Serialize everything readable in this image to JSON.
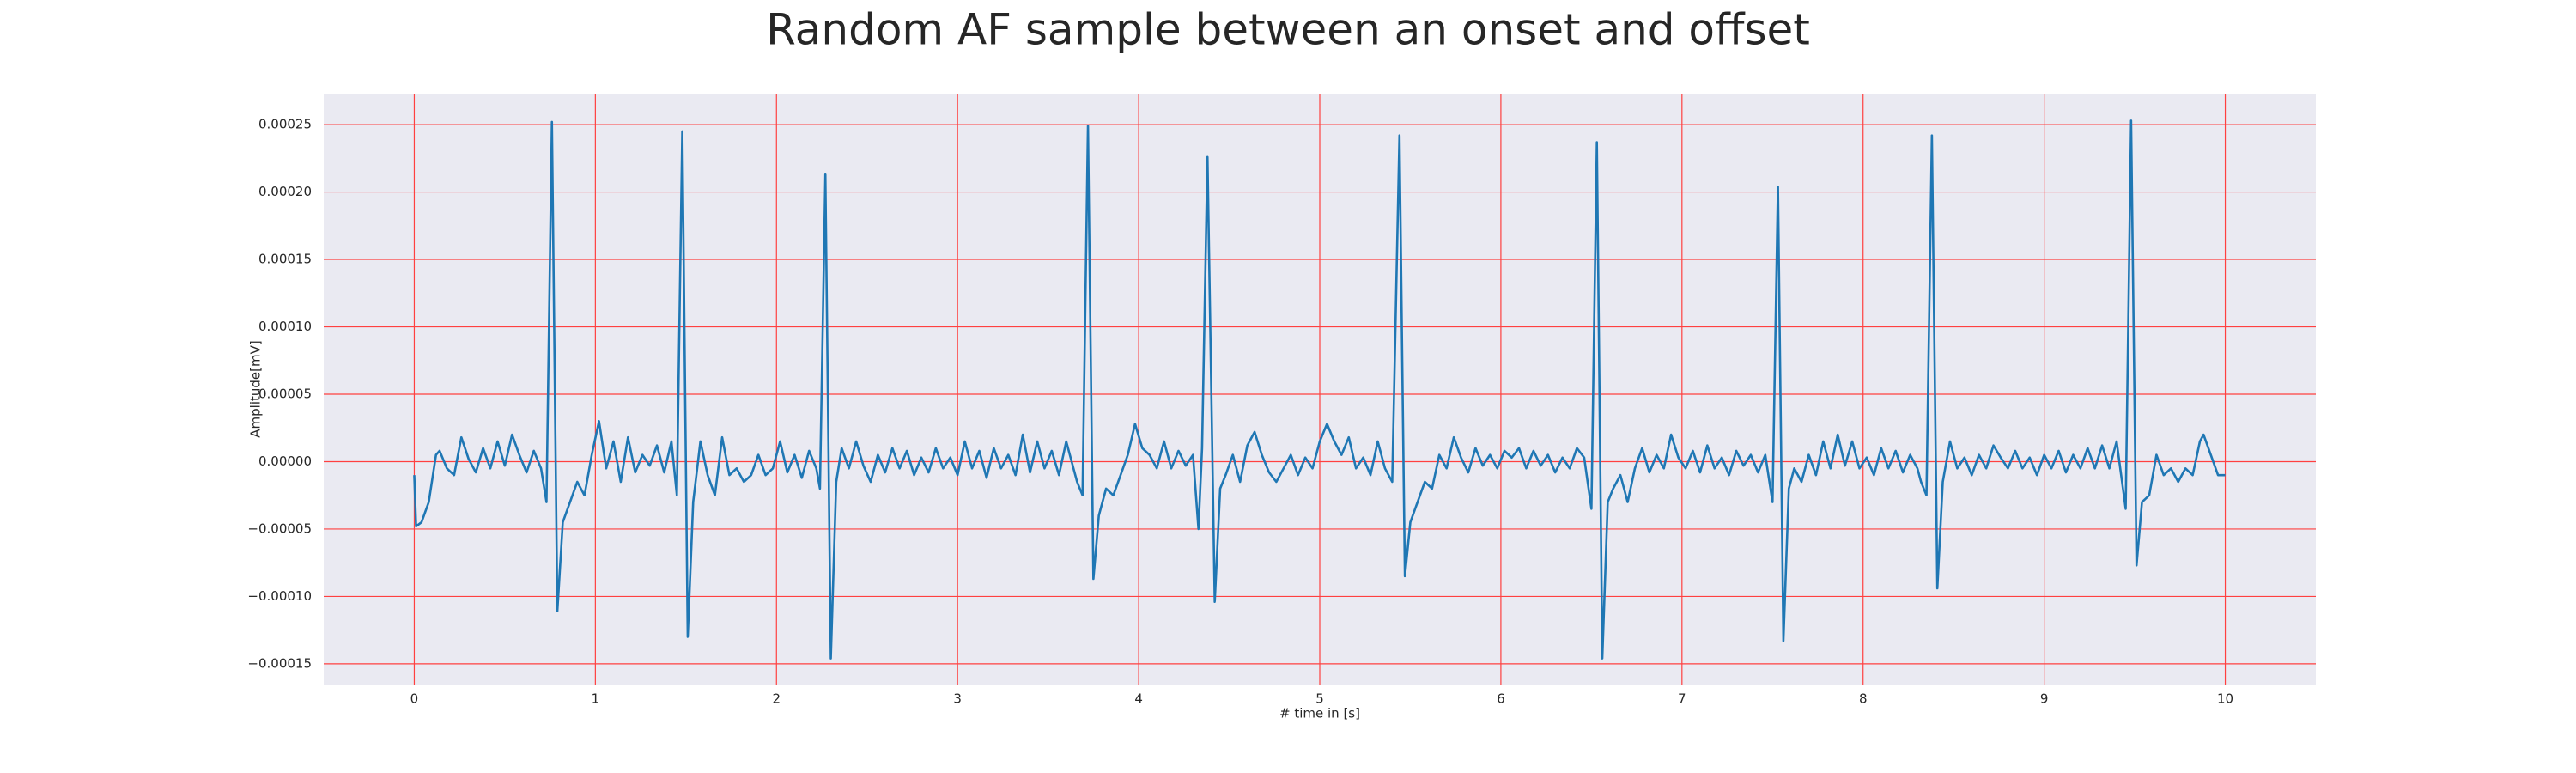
{
  "chart_data": {
    "type": "line",
    "title": "Random AF sample between an onset and offset",
    "xlabel": "# time in [s]",
    "ylabel": "Amplitude[mV]",
    "color": "#1f77b4",
    "grid": true,
    "grid_color": "#ff4040",
    "background": "#eaeaf2",
    "xlim": [
      -0.5,
      10.5
    ],
    "ylim": [
      -0.000166,
      0.000273
    ],
    "xticks": [
      0,
      1,
      2,
      3,
      4,
      5,
      6,
      7,
      8,
      9,
      10
    ],
    "yticks": [
      {
        "value": -0.00015,
        "label": "−0.00015"
      },
      {
        "value": -0.0001,
        "label": "−0.00010"
      },
      {
        "value": -5e-05,
        "label": "−0.00005"
      },
      {
        "value": 0,
        "label": "0.00000"
      },
      {
        "value": 5e-05,
        "label": "0.00005"
      },
      {
        "value": 0.0001,
        "label": "0.00010"
      },
      {
        "value": 0.00015,
        "label": "0.00015"
      },
      {
        "value": 0.0002,
        "label": "0.00020"
      },
      {
        "value": 0.00025,
        "label": "0.00025"
      }
    ],
    "x": [
      0.0,
      0.01,
      0.04,
      0.08,
      0.12,
      0.14,
      0.18,
      0.22,
      0.26,
      0.3,
      0.34,
      0.38,
      0.42,
      0.46,
      0.5,
      0.54,
      0.58,
      0.62,
      0.66,
      0.7,
      0.73,
      0.76,
      0.79,
      0.82,
      0.86,
      0.9,
      0.94,
      0.98,
      1.02,
      1.06,
      1.1,
      1.14,
      1.18,
      1.22,
      1.26,
      1.3,
      1.34,
      1.38,
      1.42,
      1.45,
      1.48,
      1.51,
      1.54,
      1.58,
      1.62,
      1.66,
      1.7,
      1.74,
      1.78,
      1.82,
      1.86,
      1.9,
      1.94,
      1.98,
      2.02,
      2.06,
      2.1,
      2.14,
      2.18,
      2.22,
      2.24,
      2.27,
      2.3,
      2.33,
      2.36,
      2.4,
      2.44,
      2.48,
      2.52,
      2.56,
      2.6,
      2.64,
      2.68,
      2.72,
      2.76,
      2.8,
      2.84,
      2.88,
      2.92,
      2.96,
      3.0,
      3.04,
      3.08,
      3.12,
      3.16,
      3.2,
      3.24,
      3.28,
      3.32,
      3.36,
      3.4,
      3.44,
      3.48,
      3.52,
      3.56,
      3.6,
      3.64,
      3.66,
      3.69,
      3.72,
      3.75,
      3.78,
      3.82,
      3.86,
      3.9,
      3.94,
      3.98,
      4.02,
      4.06,
      4.1,
      4.14,
      4.18,
      4.22,
      4.26,
      4.3,
      4.33,
      4.35,
      4.38,
      4.42,
      4.45,
      4.48,
      4.52,
      4.56,
      4.6,
      4.64,
      4.68,
      4.72,
      4.76,
      4.8,
      4.84,
      4.88,
      4.92,
      4.96,
      5.0,
      5.04,
      5.08,
      5.12,
      5.16,
      5.2,
      5.24,
      5.28,
      5.32,
      5.36,
      5.4,
      5.44,
      5.47,
      5.5,
      5.54,
      5.58,
      5.62,
      5.66,
      5.7,
      5.74,
      5.78,
      5.82,
      5.86,
      5.9,
      5.94,
      5.98,
      6.02,
      6.06,
      6.1,
      6.14,
      6.18,
      6.22,
      6.26,
      6.3,
      6.34,
      6.38,
      6.42,
      6.46,
      6.5,
      6.53,
      6.56,
      6.59,
      6.62,
      6.66,
      6.7,
      6.74,
      6.78,
      6.82,
      6.86,
      6.9,
      6.94,
      6.98,
      7.02,
      7.06,
      7.1,
      7.14,
      7.18,
      7.22,
      7.26,
      7.3,
      7.34,
      7.38,
      7.42,
      7.46,
      7.5,
      7.53,
      7.56,
      7.59,
      7.62,
      7.66,
      7.7,
      7.74,
      7.78,
      7.82,
      7.86,
      7.9,
      7.94,
      7.98,
      8.02,
      8.06,
      8.1,
      8.14,
      8.18,
      8.22,
      8.26,
      8.3,
      8.32,
      8.35,
      8.38,
      8.41,
      8.44,
      8.48,
      8.52,
      8.56,
      8.6,
      8.64,
      8.68,
      8.72,
      8.76,
      8.8,
      8.84,
      8.88,
      8.92,
      8.96,
      9.0,
      9.04,
      9.08,
      9.12,
      9.16,
      9.2,
      9.24,
      9.28,
      9.32,
      9.36,
      9.4,
      9.43,
      9.45,
      9.48,
      9.51,
      9.54,
      9.58,
      9.62,
      9.66,
      9.7,
      9.74,
      9.78,
      9.82,
      9.86,
      9.88,
      9.92,
      9.96,
      10.0
    ],
    "values": [
      -1e-05,
      -4.8e-05,
      -4.5e-05,
      -3e-05,
      5e-06,
      8e-06,
      -5e-06,
      -1e-05,
      1.8e-05,
      2e-06,
      -8e-06,
      1e-05,
      -5e-06,
      1.5e-05,
      -3e-06,
      2e-05,
      5e-06,
      -8e-06,
      8e-06,
      -5e-06,
      -3e-05,
      0.000252,
      -0.000111,
      -4.5e-05,
      -3e-05,
      -1.5e-05,
      -2.5e-05,
      5e-06,
      3e-05,
      -5e-06,
      1.5e-05,
      -1.5e-05,
      1.8e-05,
      -8e-06,
      5e-06,
      -3e-06,
      1.2e-05,
      -8e-06,
      1.5e-05,
      -2.5e-05,
      0.000245,
      -0.00013,
      -3e-05,
      1.5e-05,
      -1e-05,
      -2.5e-05,
      1.8e-05,
      -1e-05,
      -5e-06,
      -1.5e-05,
      -1e-05,
      5e-06,
      -1e-05,
      -5e-06,
      1.5e-05,
      -8e-06,
      5e-06,
      -1.2e-05,
      8e-06,
      -5e-06,
      -2e-05,
      0.000213,
      -0.000146,
      -1.5e-05,
      1e-05,
      -5e-06,
      1.5e-05,
      -3e-06,
      -1.5e-05,
      5e-06,
      -8e-06,
      1e-05,
      -5e-06,
      8e-06,
      -1e-05,
      3e-06,
      -8e-06,
      1e-05,
      -5e-06,
      3e-06,
      -1e-05,
      1.5e-05,
      -5e-06,
      8e-06,
      -1.2e-05,
      1e-05,
      -5e-06,
      5e-06,
      -1e-05,
      2e-05,
      -8e-06,
      1.5e-05,
      -5e-06,
      8e-06,
      -1e-05,
      1.5e-05,
      -5e-06,
      -1.5e-05,
      -2.5e-05,
      0.000249,
      -8.7e-05,
      -4e-05,
      -2e-05,
      -2.5e-05,
      -1e-05,
      5e-06,
      2.8e-05,
      1e-05,
      5e-06,
      -5e-06,
      1.5e-05,
      -5e-06,
      8e-06,
      -3e-06,
      5e-06,
      -5e-05,
      1e-05,
      0.000226,
      -0.000104,
      -2e-05,
      -1e-05,
      5e-06,
      -1.5e-05,
      1.2e-05,
      2.2e-05,
      5e-06,
      -8e-06,
      -1.5e-05,
      -5e-06,
      5e-06,
      -1e-05,
      3e-06,
      -5e-06,
      1.5e-05,
      2.8e-05,
      1.5e-05,
      5e-06,
      1.8e-05,
      -5e-06,
      3e-06,
      -1e-05,
      1.5e-05,
      -5e-06,
      -1.5e-05,
      0.000242,
      -8.5e-05,
      -4.5e-05,
      -3e-05,
      -1.5e-05,
      -2e-05,
      5e-06,
      -5e-06,
      1.8e-05,
      3e-06,
      -8e-06,
      1e-05,
      -3e-06,
      5e-06,
      -5e-06,
      8e-06,
      3e-06,
      1e-05,
      -5e-06,
      8e-06,
      -3e-06,
      5e-06,
      -8e-06,
      3e-06,
      -5e-06,
      1e-05,
      3e-06,
      -3.5e-05,
      0.000237,
      -0.000146,
      -3e-05,
      -2e-05,
      -1e-05,
      -3e-05,
      -5e-06,
      1e-05,
      -8e-06,
      5e-06,
      -5e-06,
      2e-05,
      3e-06,
      -5e-06,
      8e-06,
      -8e-06,
      1.2e-05,
      -5e-06,
      3e-06,
      -1e-05,
      8e-06,
      -3e-06,
      5e-06,
      -8e-06,
      5e-06,
      -3e-05,
      0.000204,
      -0.000133,
      -2e-05,
      -5e-06,
      -1.5e-05,
      5e-06,
      -1e-05,
      1.5e-05,
      -5e-06,
      2e-05,
      -3e-06,
      1.5e-05,
      -5e-06,
      3e-06,
      -1e-05,
      1e-05,
      -5e-06,
      8e-06,
      -8e-06,
      5e-06,
      -5e-06,
      -1.5e-05,
      -2.5e-05,
      0.000242,
      -9.4e-05,
      -1.5e-05,
      1.5e-05,
      -5e-06,
      3e-06,
      -1e-05,
      5e-06,
      -5e-06,
      1.2e-05,
      3e-06,
      -5e-06,
      8e-06,
      -5e-06,
      3e-06,
      -1e-05,
      5e-06,
      -5e-06,
      8e-06,
      -8e-06,
      5e-06,
      -5e-06,
      1e-05,
      -5e-06,
      1.2e-05,
      -5e-06,
      1.5e-05,
      -1.5e-05,
      -3.5e-05,
      0.000253,
      -7.7e-05,
      -3e-05,
      -2.5e-05,
      5e-06,
      -1e-05,
      -5e-06,
      -1.5e-05,
      -5e-06,
      -1e-05,
      1.5e-05,
      2e-05,
      5e-06,
      -1e-05,
      -1e-05
    ]
  }
}
